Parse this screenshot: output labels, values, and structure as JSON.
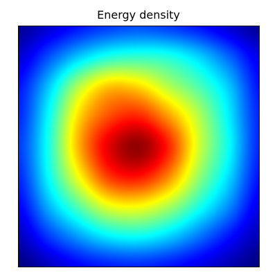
{
  "chart_data": {
    "type": "heatmap",
    "title": "Energy density",
    "xlabel": "",
    "ylabel": "",
    "colormap": "jet",
    "axes_ticks_visible": false,
    "grid": false,
    "legend": "none",
    "value_range": [
      0.0,
      1.0
    ],
    "grid_rows": 9,
    "grid_cols": 9,
    "values": [
      [
        0.02,
        0.08,
        0.14,
        0.18,
        0.2,
        0.18,
        0.14,
        0.08,
        0.02
      ],
      [
        0.08,
        0.2,
        0.32,
        0.4,
        0.42,
        0.4,
        0.33,
        0.22,
        0.1
      ],
      [
        0.14,
        0.32,
        0.55,
        0.68,
        0.66,
        0.55,
        0.45,
        0.32,
        0.14
      ],
      [
        0.16,
        0.38,
        0.66,
        0.8,
        0.84,
        0.72,
        0.55,
        0.36,
        0.16
      ],
      [
        0.18,
        0.4,
        0.7,
        0.9,
        0.98,
        0.84,
        0.58,
        0.38,
        0.16
      ],
      [
        0.16,
        0.38,
        0.62,
        0.82,
        0.86,
        0.74,
        0.52,
        0.34,
        0.14
      ],
      [
        0.12,
        0.3,
        0.46,
        0.6,
        0.62,
        0.54,
        0.4,
        0.26,
        0.1
      ],
      [
        0.06,
        0.18,
        0.28,
        0.36,
        0.38,
        0.33,
        0.24,
        0.14,
        0.05
      ],
      [
        0.0,
        0.06,
        0.12,
        0.15,
        0.16,
        0.14,
        0.1,
        0.05,
        0.0
      ]
    ]
  }
}
